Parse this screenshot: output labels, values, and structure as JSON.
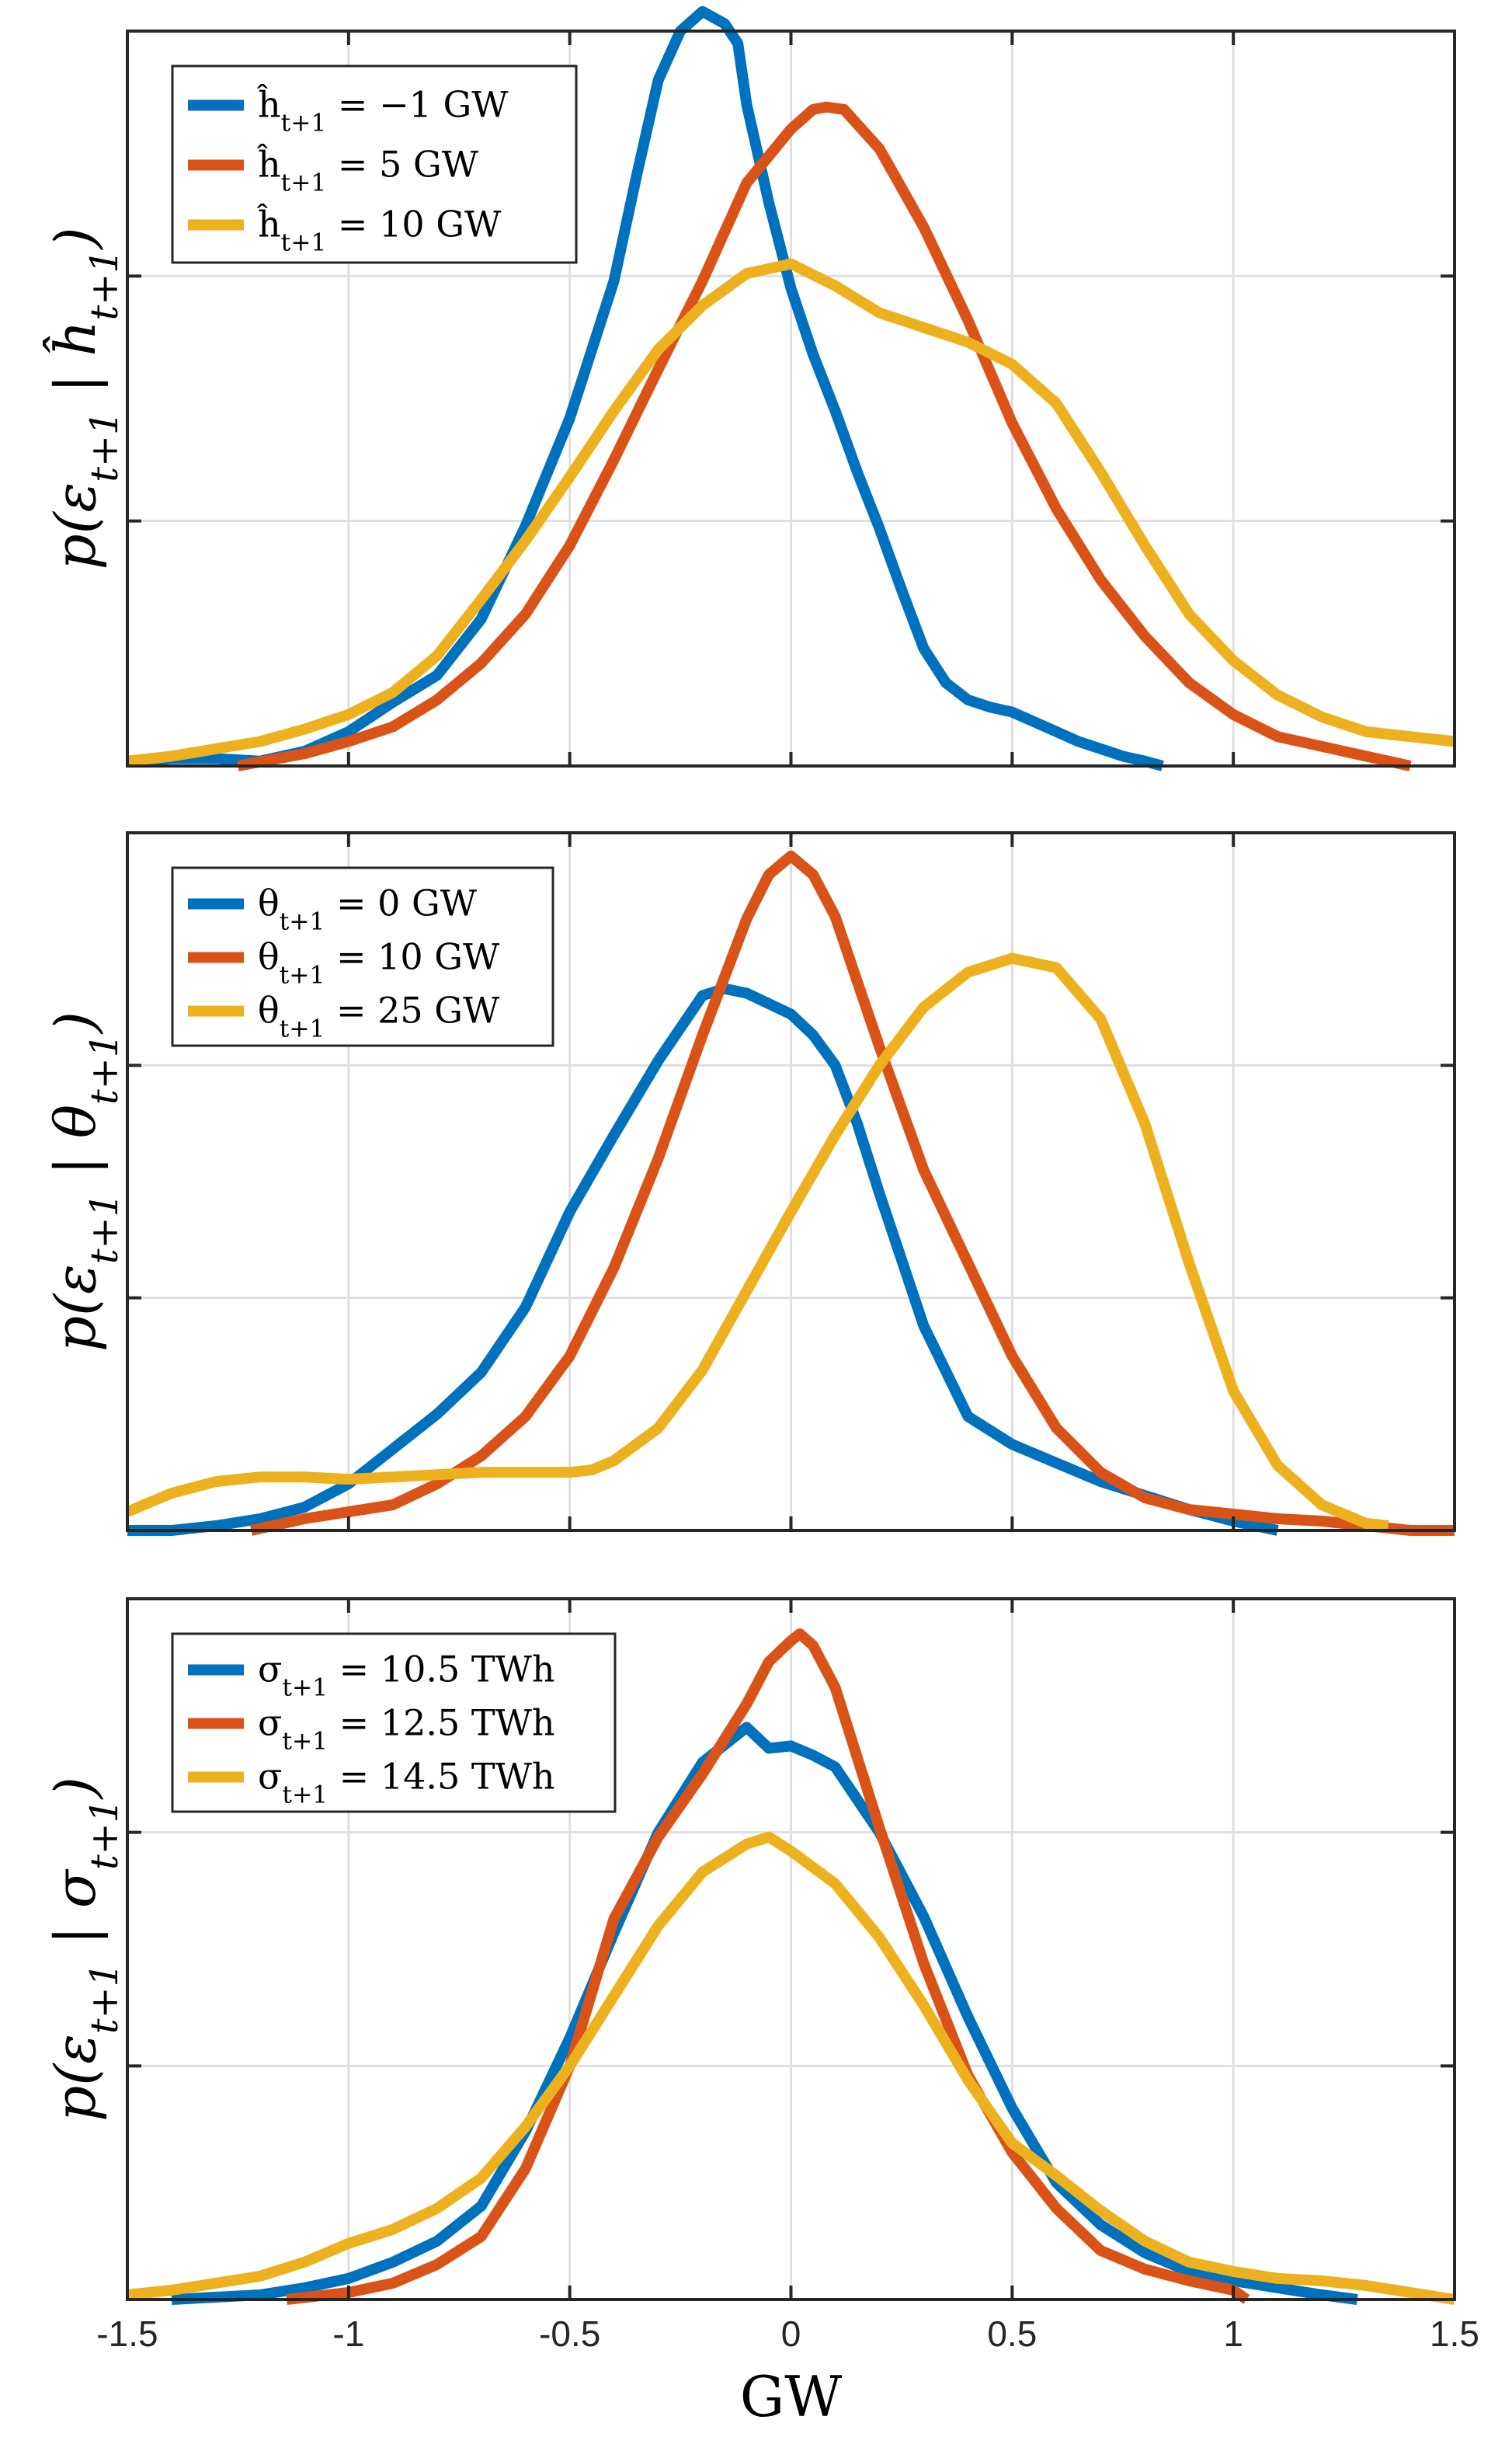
{
  "chart_data": [
    {
      "type": "line",
      "ylabel": "p(ε_{t+1} | ĥ_{t+1})",
      "xlim": [
        -1.5,
        1.5
      ],
      "ylim": [
        0,
        3
      ],
      "x_ticks": [
        -1.5,
        -1,
        -0.5,
        0,
        0.5,
        1,
        1.5
      ],
      "y_tick_values": [
        0,
        1,
        2,
        3
      ],
      "y_tick_labels_shown": false,
      "grid": true,
      "legend_position": "top-left",
      "series": [
        {
          "name": "ĥ_{t+1} = −1 GW",
          "color": "#0072BD",
          "x": [
            -1.5,
            -1.4,
            -1.3,
            -1.2,
            -1.1,
            -1.0,
            -0.9,
            -0.8,
            -0.7,
            -0.6,
            -0.5,
            -0.45,
            -0.4,
            -0.35,
            -0.3,
            -0.25,
            -0.2,
            -0.15,
            -0.12,
            -0.1,
            -0.05,
            0.0,
            0.05,
            0.1,
            0.15,
            0.2,
            0.25,
            0.3,
            0.35,
            0.4,
            0.45,
            0.5,
            0.55,
            0.6,
            0.65,
            0.7,
            0.75,
            0.8,
            0.84
          ],
          "y": [
            0.02,
            0.03,
            0.03,
            0.02,
            0.06,
            0.14,
            0.26,
            0.37,
            0.6,
            0.98,
            1.42,
            1.7,
            1.98,
            2.4,
            2.8,
            3.0,
            3.08,
            3.03,
            2.95,
            2.7,
            2.3,
            1.95,
            1.68,
            1.45,
            1.2,
            0.97,
            0.72,
            0.48,
            0.34,
            0.27,
            0.24,
            0.22,
            0.18,
            0.14,
            0.1,
            0.07,
            0.04,
            0.02,
            0.0
          ]
        },
        {
          "name": "ĥ_{t+1} = 5 GW",
          "color": "#D95319",
          "x": [
            -1.25,
            -1.1,
            -1.0,
            -0.9,
            -0.8,
            -0.7,
            -0.6,
            -0.5,
            -0.4,
            -0.3,
            -0.2,
            -0.1,
            0.0,
            0.05,
            0.08,
            0.12,
            0.2,
            0.3,
            0.4,
            0.5,
            0.6,
            0.7,
            0.8,
            0.9,
            1.0,
            1.1,
            1.2,
            1.3,
            1.4
          ],
          "y": [
            0.0,
            0.05,
            0.1,
            0.16,
            0.27,
            0.42,
            0.62,
            0.9,
            1.25,
            1.62,
            1.98,
            2.38,
            2.6,
            2.68,
            2.69,
            2.68,
            2.52,
            2.2,
            1.82,
            1.4,
            1.05,
            0.76,
            0.53,
            0.34,
            0.21,
            0.12,
            0.08,
            0.04,
            0.0
          ]
        },
        {
          "name": "ĥ_{t+1} = 10 GW",
          "color": "#EDB120",
          "x": [
            -1.5,
            -1.4,
            -1.3,
            -1.2,
            -1.1,
            -1.0,
            -0.9,
            -0.8,
            -0.7,
            -0.6,
            -0.5,
            -0.4,
            -0.3,
            -0.2,
            -0.1,
            0.0,
            0.1,
            0.2,
            0.3,
            0.4,
            0.5,
            0.6,
            0.7,
            0.8,
            0.9,
            1.0,
            1.1,
            1.2,
            1.3,
            1.4,
            1.5
          ],
          "y": [
            0.02,
            0.04,
            0.07,
            0.1,
            0.15,
            0.21,
            0.3,
            0.45,
            0.68,
            0.92,
            1.18,
            1.45,
            1.7,
            1.88,
            2.01,
            2.05,
            1.96,
            1.85,
            1.79,
            1.73,
            1.64,
            1.48,
            1.2,
            0.9,
            0.62,
            0.43,
            0.29,
            0.2,
            0.14,
            0.12,
            0.1
          ]
        }
      ]
    },
    {
      "type": "line",
      "ylabel": "p(ε_{t+1} | θ_{t+1})",
      "xlim": [
        -1.5,
        1.5
      ],
      "ylim": [
        0,
        3
      ],
      "x_ticks": [
        -1.5,
        -1,
        -0.5,
        0,
        0.5,
        1,
        1.5
      ],
      "y_tick_values": [
        0,
        1,
        2,
        3
      ],
      "y_tick_labels_shown": false,
      "grid": true,
      "legend_position": "top-left",
      "series": [
        {
          "name": "θ_{t+1} = 0 GW",
          "color": "#0072BD",
          "x": [
            -1.5,
            -1.4,
            -1.3,
            -1.2,
            -1.1,
            -1.0,
            -0.9,
            -0.8,
            -0.7,
            -0.6,
            -0.5,
            -0.4,
            -0.3,
            -0.2,
            -0.15,
            -0.1,
            0.0,
            0.05,
            0.1,
            0.15,
            0.2,
            0.3,
            0.4,
            0.5,
            0.6,
            0.7,
            0.8,
            0.9,
            1.0,
            1.1
          ],
          "y": [
            0.0,
            0.0,
            0.02,
            0.05,
            0.1,
            0.2,
            0.35,
            0.5,
            0.68,
            0.96,
            1.37,
            1.7,
            2.02,
            2.3,
            2.33,
            2.31,
            2.22,
            2.13,
            2.0,
            1.75,
            1.45,
            0.88,
            0.49,
            0.37,
            0.29,
            0.21,
            0.15,
            0.09,
            0.04,
            0.0
          ]
        },
        {
          "name": "θ_{t+1} = 10 GW",
          "color": "#D95319",
          "x": [
            -1.22,
            -1.1,
            -1.0,
            -0.9,
            -0.8,
            -0.7,
            -0.6,
            -0.5,
            -0.4,
            -0.3,
            -0.2,
            -0.1,
            -0.05,
            0.0,
            0.05,
            0.1,
            0.2,
            0.3,
            0.4,
            0.5,
            0.6,
            0.7,
            0.8,
            0.9,
            1.0,
            1.1,
            1.2,
            1.3,
            1.4,
            1.5
          ],
          "y": [
            0.0,
            0.05,
            0.08,
            0.11,
            0.2,
            0.32,
            0.49,
            0.75,
            1.13,
            1.6,
            2.13,
            2.63,
            2.82,
            2.9,
            2.82,
            2.64,
            2.08,
            1.55,
            1.15,
            0.75,
            0.44,
            0.25,
            0.14,
            0.09,
            0.07,
            0.05,
            0.04,
            0.02,
            0.0,
            0.0
          ]
        },
        {
          "name": "θ_{t+1} = 25 GW",
          "color": "#EDB120",
          "x": [
            -1.5,
            -1.4,
            -1.3,
            -1.2,
            -1.1,
            -1.0,
            -0.9,
            -0.8,
            -0.7,
            -0.6,
            -0.5,
            -0.45,
            -0.4,
            -0.3,
            -0.2,
            -0.1,
            0.0,
            0.1,
            0.2,
            0.3,
            0.4,
            0.5,
            0.6,
            0.7,
            0.8,
            0.9,
            1.0,
            1.1,
            1.2,
            1.3,
            1.35
          ],
          "y": [
            0.08,
            0.16,
            0.21,
            0.23,
            0.23,
            0.22,
            0.23,
            0.24,
            0.25,
            0.25,
            0.25,
            0.26,
            0.3,
            0.44,
            0.69,
            1.03,
            1.37,
            1.7,
            2.0,
            2.25,
            2.4,
            2.46,
            2.42,
            2.2,
            1.75,
            1.15,
            0.6,
            0.28,
            0.11,
            0.03,
            0.02
          ]
        }
      ]
    },
    {
      "type": "line",
      "ylabel": "p(ε_{t+1} | σ_{t+1})",
      "xlabel": "GW",
      "xlim": [
        -1.5,
        1.5
      ],
      "ylim": [
        0,
        3
      ],
      "x_ticks": [
        -1.5,
        -1,
        -0.5,
        0,
        0.5,
        1,
        1.5
      ],
      "x_tick_labels": [
        "-1.5",
        "-1",
        "-0.5",
        "0",
        "0.5",
        "1",
        "1.5"
      ],
      "y_tick_values": [
        0,
        1,
        2,
        3
      ],
      "y_tick_labels_shown": false,
      "grid": true,
      "legend_position": "top-left",
      "series": [
        {
          "name": "σ_{t+1} = 10.5 TWh",
          "color": "#0072BD",
          "x": [
            -1.4,
            -1.3,
            -1.2,
            -1.1,
            -1.0,
            -0.9,
            -0.8,
            -0.7,
            -0.6,
            -0.5,
            -0.4,
            -0.3,
            -0.2,
            -0.1,
            -0.05,
            0.0,
            0.05,
            0.1,
            0.2,
            0.3,
            0.4,
            0.5,
            0.6,
            0.7,
            0.8,
            0.9,
            1.0,
            1.1,
            1.2,
            1.28
          ],
          "y": [
            0.0,
            0.01,
            0.02,
            0.05,
            0.09,
            0.16,
            0.25,
            0.4,
            0.72,
            1.12,
            1.57,
            2.0,
            2.3,
            2.45,
            2.36,
            2.37,
            2.33,
            2.28,
            2.0,
            1.64,
            1.21,
            0.82,
            0.5,
            0.32,
            0.2,
            0.12,
            0.08,
            0.05,
            0.02,
            0.0
          ]
        },
        {
          "name": "σ_{t+1} = 12.5 TWh",
          "color": "#D95319",
          "x": [
            -1.14,
            -1.0,
            -0.9,
            -0.8,
            -0.7,
            -0.6,
            -0.5,
            -0.4,
            -0.3,
            -0.2,
            -0.1,
            -0.05,
            0.0,
            0.02,
            0.05,
            0.1,
            0.2,
            0.3,
            0.4,
            0.5,
            0.6,
            0.7,
            0.8,
            0.9,
            1.0,
            1.03
          ],
          "y": [
            0.0,
            0.03,
            0.07,
            0.15,
            0.27,
            0.56,
            1.0,
            1.63,
            1.98,
            2.25,
            2.55,
            2.73,
            2.82,
            2.85,
            2.8,
            2.62,
            2.02,
            1.44,
            0.96,
            0.63,
            0.39,
            0.21,
            0.13,
            0.08,
            0.04,
            0.0
          ]
        },
        {
          "name": "σ_{t+1} = 14.5 TWh",
          "color": "#EDB120",
          "x": [
            -1.5,
            -1.4,
            -1.3,
            -1.2,
            -1.1,
            -1.0,
            -0.9,
            -0.8,
            -0.7,
            -0.6,
            -0.5,
            -0.4,
            -0.3,
            -0.2,
            -0.1,
            -0.05,
            0.0,
            0.1,
            0.2,
            0.3,
            0.4,
            0.5,
            0.6,
            0.7,
            0.8,
            0.9,
            1.0,
            1.1,
            1.2,
            1.3,
            1.4,
            1.5
          ],
          "y": [
            0.02,
            0.04,
            0.07,
            0.1,
            0.16,
            0.24,
            0.3,
            0.39,
            0.52,
            0.74,
            1.0,
            1.3,
            1.6,
            1.83,
            1.95,
            1.98,
            1.92,
            1.78,
            1.55,
            1.26,
            0.94,
            0.67,
            0.53,
            0.38,
            0.25,
            0.16,
            0.12,
            0.09,
            0.08,
            0.06,
            0.03,
            0.0
          ]
        }
      ]
    }
  ]
}
